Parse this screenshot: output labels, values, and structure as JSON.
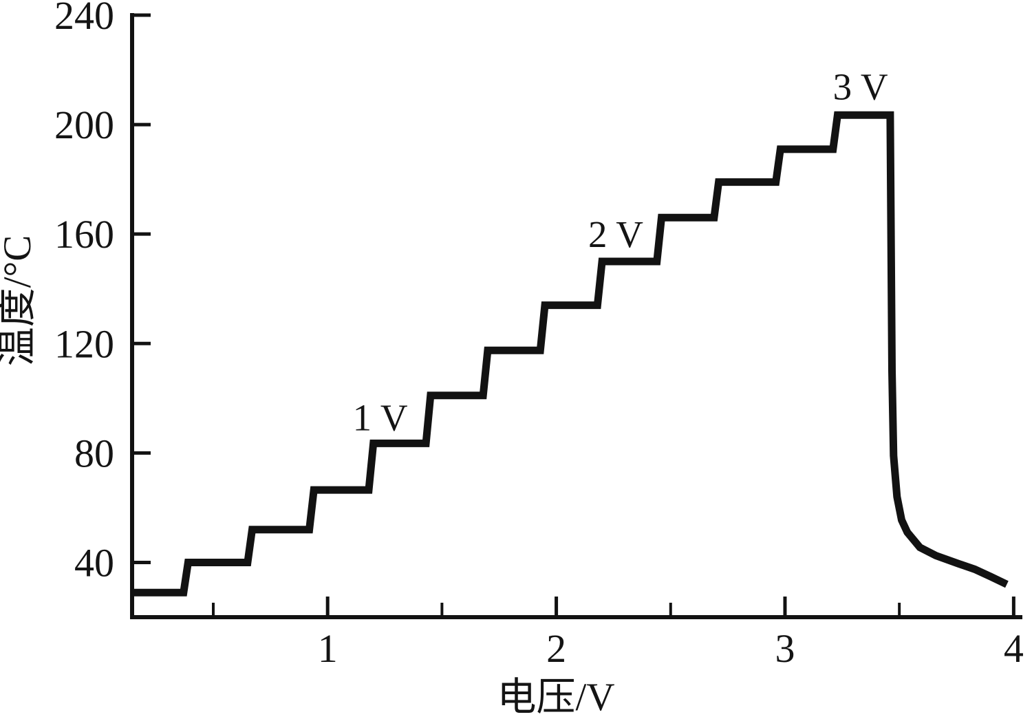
{
  "chart_data": {
    "type": "line",
    "title": "",
    "xlabel": "电压/V",
    "ylabel": "温度/°C",
    "xlim": [
      0.145,
      4.02
    ],
    "ylim": [
      20,
      240
    ],
    "x_major_ticks": [
      1,
      2,
      3,
      4
    ],
    "x_minor_ticks": [
      0.5,
      1.5,
      2.5,
      3.5
    ],
    "y_major_ticks": [
      40,
      80,
      120,
      160,
      200,
      240
    ],
    "grid": false,
    "legend_position": "none",
    "line_color": "#121212",
    "background_color": "#ffffff",
    "curve_description": "Staircase heating curve: temperature rises in steps as applied voltage is increased in ~0.25 V increments, reaches ~203 °C near 3.45 V, then drops sharply and tails off toward ~32 °C at 4 V",
    "series": [
      {
        "name": "温度 vs 电压 staircase",
        "points": [
          [
            0.145,
            29
          ],
          [
            0.37,
            29
          ],
          [
            0.39,
            40
          ],
          [
            0.65,
            40
          ],
          [
            0.67,
            52
          ],
          [
            0.92,
            52
          ],
          [
            0.94,
            66.5
          ],
          [
            1.18,
            66.5
          ],
          [
            1.2,
            83.5
          ],
          [
            1.43,
            83.5
          ],
          [
            1.45,
            101
          ],
          [
            1.68,
            101
          ],
          [
            1.7,
            117.5
          ],
          [
            1.93,
            117.5
          ],
          [
            1.95,
            134
          ],
          [
            2.18,
            134
          ],
          [
            2.2,
            150
          ],
          [
            2.44,
            150
          ],
          [
            2.46,
            166
          ],
          [
            2.69,
            166
          ],
          [
            2.71,
            179
          ],
          [
            2.96,
            179
          ],
          [
            2.98,
            191
          ],
          [
            3.21,
            191
          ],
          [
            3.23,
            203.5
          ],
          [
            3.46,
            203.5
          ],
          [
            3.468,
            110
          ],
          [
            3.475,
            79
          ],
          [
            3.49,
            64
          ],
          [
            3.51,
            55.5
          ],
          [
            3.535,
            51
          ],
          [
            3.59,
            45.5
          ],
          [
            3.66,
            42.5
          ],
          [
            3.76,
            39.5
          ],
          [
            3.83,
            37.5
          ],
          [
            3.9,
            34.8
          ],
          [
            3.97,
            32
          ]
        ]
      }
    ],
    "plateaus": [
      {
        "voltage_range": [
          0.15,
          0.37
        ],
        "temperature": 29
      },
      {
        "voltage_range": [
          0.39,
          0.65
        ],
        "temperature": 40
      },
      {
        "voltage_range": [
          0.67,
          0.92
        ],
        "temperature": 52
      },
      {
        "voltage_range": [
          0.94,
          1.18
        ],
        "temperature": 66.5
      },
      {
        "voltage_range": [
          1.2,
          1.43
        ],
        "temperature": 83.5
      },
      {
        "voltage_range": [
          1.45,
          1.68
        ],
        "temperature": 101
      },
      {
        "voltage_range": [
          1.7,
          1.93
        ],
        "temperature": 117.5
      },
      {
        "voltage_range": [
          1.95,
          2.18
        ],
        "temperature": 134
      },
      {
        "voltage_range": [
          2.2,
          2.44
        ],
        "temperature": 150
      },
      {
        "voltage_range": [
          2.46,
          2.69
        ],
        "temperature": 166
      },
      {
        "voltage_range": [
          2.71,
          2.96
        ],
        "temperature": 179
      },
      {
        "voltage_range": [
          2.98,
          3.21
        ],
        "temperature": 191
      },
      {
        "voltage_range": [
          3.23,
          3.46
        ],
        "temperature": 203.5
      }
    ],
    "peak": {
      "voltage": 3.45,
      "temperature": 203.5
    },
    "drop_at_voltage": 3.46,
    "end_point": {
      "voltage": 3.97,
      "temperature": 32
    },
    "annotations": [
      {
        "label": "1 V",
        "x": 1.23,
        "y": 93
      },
      {
        "label": "2 V",
        "x": 2.26,
        "y": 160
      },
      {
        "label": "3 V",
        "x": 3.33,
        "y": 214
      }
    ]
  }
}
